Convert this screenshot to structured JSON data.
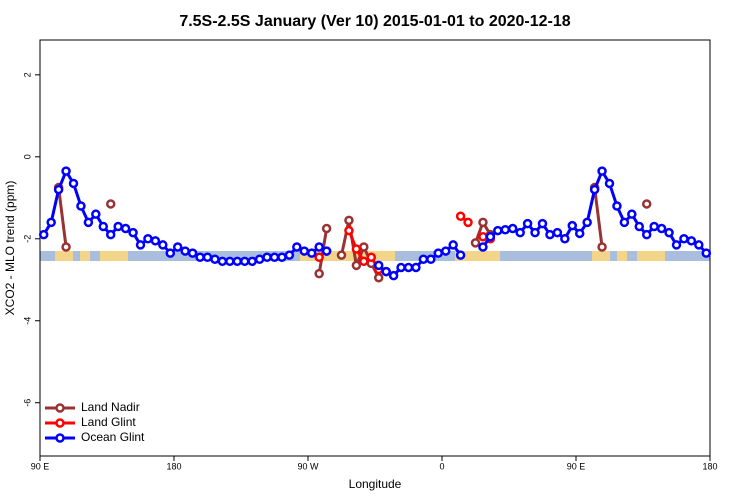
{
  "chart_data": {
    "type": "line",
    "title": "7.5S-2.5S January (Ver 10)   2015-01-01 to 2020-12-18",
    "x_label": "Longitude",
    "y_label": "XCO2 - MLO trend (ppm)",
    "x": [
      92.5,
      97.5,
      102.5,
      107.5,
      112.5,
      117.5,
      122.5,
      127.5,
      132.5,
      137.5,
      142.5,
      147.5,
      152.5,
      157.5,
      162.5,
      167.5,
      172.5,
      177.5,
      182.5,
      187.5,
      192.5,
      197.5,
      202.5,
      207.5,
      212.5,
      217.5,
      222.5,
      227.5,
      232.5,
      237.5,
      242.5,
      247.5,
      252.5,
      257.5,
      262.5,
      267.5,
      272.5,
      277.5,
      282.5,
      287.5,
      292.5,
      297.5,
      302.5,
      307.5,
      312.5,
      317.5,
      322.5,
      327.5,
      332.5,
      337.5,
      342.5,
      347.5,
      352.5,
      357.5,
      362.5,
      367.5,
      372.5,
      377.5,
      382.5,
      387.5,
      392.5,
      397.5,
      402.5,
      407.5,
      412.5,
      417.5,
      422.5,
      427.5,
      432.5,
      437.5,
      442.5,
      447.5,
      452.5,
      457.5,
      462.5,
      467.5,
      472.5,
      477.5,
      482.5,
      487.5,
      492.5,
      497.5,
      502.5,
      507.5,
      512.5,
      517.5,
      522.5,
      527.5,
      532.5,
      537.5
    ],
    "series": [
      {
        "name": "Land Nadir",
        "color": "#993333",
        "values": [
          null,
          null,
          -0.75,
          -2.2,
          null,
          null,
          null,
          null,
          null,
          -1.15,
          null,
          null,
          null,
          null,
          null,
          null,
          null,
          null,
          null,
          null,
          null,
          null,
          null,
          null,
          null,
          null,
          null,
          null,
          null,
          null,
          null,
          null,
          null,
          null,
          null,
          null,
          null,
          -2.85,
          -1.75,
          null,
          -2.4,
          -1.55,
          -2.65,
          -2.2,
          -2.6,
          -2.95,
          null,
          null,
          null,
          null,
          null,
          null,
          null,
          null,
          null,
          null,
          null,
          null,
          -2.1,
          -1.6,
          -1.9,
          null,
          null,
          null,
          null,
          null,
          null,
          null,
          null,
          null,
          null,
          null,
          null,
          null,
          -0.75,
          -2.2,
          null,
          null,
          null,
          null,
          null,
          -1.15,
          null,
          null,
          null,
          null,
          null,
          null,
          null,
          null
        ]
      },
      {
        "name": "Land Glint",
        "color": "#ff0000",
        "values": [
          null,
          null,
          null,
          null,
          null,
          null,
          null,
          null,
          null,
          null,
          null,
          null,
          null,
          null,
          null,
          null,
          null,
          null,
          null,
          null,
          null,
          null,
          null,
          null,
          null,
          null,
          null,
          null,
          null,
          null,
          null,
          null,
          null,
          null,
          null,
          null,
          null,
          -2.45,
          -2.3,
          null,
          null,
          -1.8,
          -2.25,
          -2.55,
          -2.45,
          -2.75,
          -2.8,
          null,
          null,
          null,
          null,
          null,
          null,
          null,
          null,
          null,
          -1.45,
          -1.6,
          null,
          -1.95,
          -2.0,
          null,
          null,
          null,
          null,
          null,
          null,
          null,
          null,
          null,
          null,
          null,
          null,
          null,
          null,
          null,
          null,
          null,
          null,
          null,
          null,
          null,
          null,
          null,
          null,
          null,
          null,
          null,
          null,
          null
        ]
      },
      {
        "name": "Ocean Glint",
        "color": "#0000ff",
        "values": [
          -1.9,
          -1.6,
          -0.8,
          -0.35,
          -0.65,
          -1.2,
          -1.6,
          -1.4,
          -1.7,
          -1.9,
          -1.7,
          -1.75,
          -1.85,
          -2.15,
          -2.0,
          -2.05,
          -2.15,
          -2.35,
          -2.2,
          -2.3,
          -2.35,
          -2.45,
          -2.45,
          -2.5,
          -2.55,
          -2.55,
          -2.55,
          -2.55,
          -2.55,
          -2.5,
          -2.45,
          -2.45,
          -2.45,
          -2.4,
          -2.2,
          -2.3,
          -2.35,
          -2.2,
          -2.3,
          null,
          null,
          null,
          null,
          null,
          null,
          -2.65,
          -2.8,
          -2.9,
          -2.7,
          -2.7,
          -2.7,
          -2.5,
          -2.5,
          -2.35,
          -2.3,
          -2.15,
          -2.4,
          null,
          null,
          -2.2,
          -1.95,
          -1.8,
          -1.78,
          -1.75,
          -1.85,
          -1.63,
          -1.85,
          -1.63,
          -1.9,
          -1.85,
          -2.0,
          -1.68,
          -1.87,
          -1.6,
          -0.8,
          -0.35,
          -0.65,
          -1.2,
          -1.6,
          -1.4,
          -1.7,
          -1.9,
          -1.7,
          -1.75,
          -1.85,
          -2.15,
          -2.0,
          -2.05,
          -2.15,
          -2.35
        ]
      }
    ],
    "xlim": [
      90,
      540
    ],
    "xticks": [
      {
        "value": 90,
        "label": "90 E"
      },
      {
        "value": 180,
        "label": "180"
      },
      {
        "value": 270,
        "label": "90 W"
      },
      {
        "value": 360,
        "label": "0"
      },
      {
        "value": 450,
        "label": "90 E"
      },
      {
        "value": 540,
        "label": "180"
      }
    ],
    "ylim": [
      -7.3,
      2.85
    ],
    "yticks": [
      -6,
      -4,
      -2,
      0,
      2
    ],
    "legend": "bottomleft"
  }
}
